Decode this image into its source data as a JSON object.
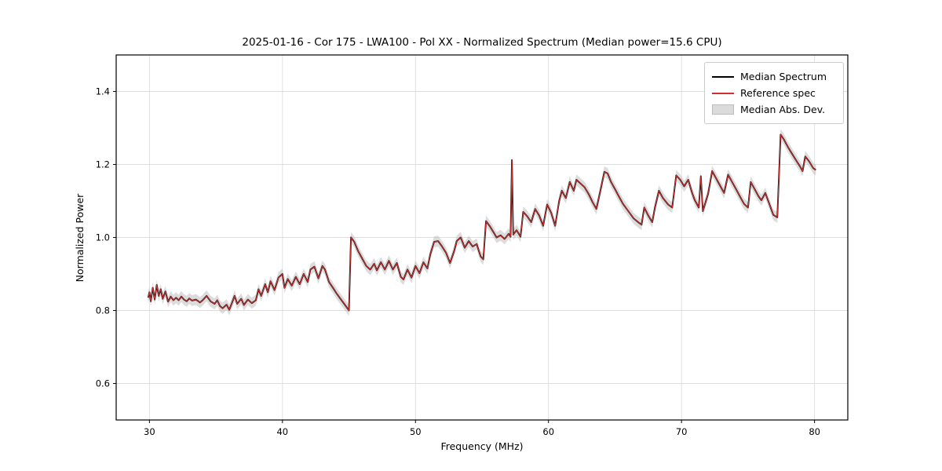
{
  "figure": {
    "title": "2025-01-16 - Cor 175 - LWA100 - Pol XX - Normalized Spectrum (Median power=15.6 CPU)",
    "xlabel": "Frequency (MHz)",
    "ylabel": "Normalized Power"
  },
  "legend": {
    "entries": [
      {
        "label": "Median Spectrum",
        "kind": "line",
        "color": "#000000"
      },
      {
        "label": "Reference spec",
        "kind": "line",
        "color": "#d03030"
      },
      {
        "label": "Median Abs. Dev.",
        "kind": "patch",
        "color": "#c8c8c8"
      }
    ]
  },
  "chart_data": {
    "type": "line",
    "title": "2025-01-16 - Cor 175 - LWA100 - Pol XX - Normalized Spectrum (Median power=15.6 CPU)",
    "xlabel": "Frequency (MHz)",
    "ylabel": "Normalized Power",
    "xlim": [
      27.5,
      82.5
    ],
    "ylim": [
      0.5,
      1.5
    ],
    "xticks": [
      30,
      40,
      50,
      60,
      70,
      80
    ],
    "yticks": [
      0.6,
      0.8,
      1.0,
      1.2,
      1.4
    ],
    "grid": true,
    "legend_position": "upper right",
    "mad": 0.015,
    "colors": {
      "median": "#000000",
      "reference": "#d03030",
      "band": "#bfbfbf",
      "grid": "#dddddd",
      "spine": "#000000"
    },
    "series": [
      {
        "name": "Median Spectrum",
        "points": [
          [
            29.9,
            0.835
          ],
          [
            30.0,
            0.85
          ],
          [
            30.1,
            0.825
          ],
          [
            30.25,
            0.862
          ],
          [
            30.4,
            0.83
          ],
          [
            30.55,
            0.87
          ],
          [
            30.7,
            0.84
          ],
          [
            30.85,
            0.858
          ],
          [
            31.0,
            0.832
          ],
          [
            31.2,
            0.852
          ],
          [
            31.4,
            0.824
          ],
          [
            31.6,
            0.838
          ],
          [
            31.8,
            0.828
          ],
          [
            32.0,
            0.835
          ],
          [
            32.2,
            0.828
          ],
          [
            32.4,
            0.838
          ],
          [
            32.6,
            0.83
          ],
          [
            32.8,
            0.825
          ],
          [
            33.0,
            0.833
          ],
          [
            33.2,
            0.827
          ],
          [
            33.5,
            0.83
          ],
          [
            33.8,
            0.822
          ],
          [
            34.0,
            0.828
          ],
          [
            34.3,
            0.84
          ],
          [
            34.6,
            0.825
          ],
          [
            34.9,
            0.818
          ],
          [
            35.1,
            0.828
          ],
          [
            35.3,
            0.812
          ],
          [
            35.5,
            0.806
          ],
          [
            35.8,
            0.816
          ],
          [
            36.0,
            0.802
          ],
          [
            36.2,
            0.82
          ],
          [
            36.4,
            0.84
          ],
          [
            36.6,
            0.818
          ],
          [
            36.9,
            0.832
          ],
          [
            37.1,
            0.815
          ],
          [
            37.4,
            0.83
          ],
          [
            37.7,
            0.82
          ],
          [
            38.0,
            0.828
          ],
          [
            38.2,
            0.858
          ],
          [
            38.4,
            0.84
          ],
          [
            38.7,
            0.872
          ],
          [
            38.9,
            0.85
          ],
          [
            39.1,
            0.88
          ],
          [
            39.4,
            0.856
          ],
          [
            39.7,
            0.89
          ],
          [
            40.0,
            0.9
          ],
          [
            40.15,
            0.862
          ],
          [
            40.4,
            0.886
          ],
          [
            40.7,
            0.868
          ],
          [
            41.0,
            0.892
          ],
          [
            41.3,
            0.872
          ],
          [
            41.6,
            0.9
          ],
          [
            41.9,
            0.878
          ],
          [
            42.1,
            0.912
          ],
          [
            42.4,
            0.92
          ],
          [
            42.7,
            0.888
          ],
          [
            43.0,
            0.922
          ],
          [
            43.2,
            0.912
          ],
          [
            43.5,
            0.878
          ],
          [
            43.8,
            0.862
          ],
          [
            44.1,
            0.845
          ],
          [
            44.4,
            0.83
          ],
          [
            44.7,
            0.815
          ],
          [
            45.0,
            0.8
          ],
          [
            45.15,
            1.0
          ],
          [
            45.4,
            0.988
          ],
          [
            45.7,
            0.962
          ],
          [
            46.0,
            0.942
          ],
          [
            46.3,
            0.922
          ],
          [
            46.6,
            0.912
          ],
          [
            46.9,
            0.928
          ],
          [
            47.1,
            0.91
          ],
          [
            47.4,
            0.932
          ],
          [
            47.7,
            0.912
          ],
          [
            48.0,
            0.936
          ],
          [
            48.3,
            0.912
          ],
          [
            48.6,
            0.93
          ],
          [
            48.9,
            0.892
          ],
          [
            49.1,
            0.885
          ],
          [
            49.4,
            0.912
          ],
          [
            49.7,
            0.89
          ],
          [
            50.0,
            0.922
          ],
          [
            50.3,
            0.902
          ],
          [
            50.6,
            0.932
          ],
          [
            50.9,
            0.915
          ],
          [
            51.1,
            0.952
          ],
          [
            51.4,
            0.988
          ],
          [
            51.7,
            0.99
          ],
          [
            52.0,
            0.975
          ],
          [
            52.3,
            0.958
          ],
          [
            52.6,
            0.93
          ],
          [
            52.9,
            0.962
          ],
          [
            53.1,
            0.99
          ],
          [
            53.4,
            1.0
          ],
          [
            53.7,
            0.972
          ],
          [
            54.0,
            0.99
          ],
          [
            54.3,
            0.975
          ],
          [
            54.6,
            0.982
          ],
          [
            54.9,
            0.948
          ],
          [
            55.1,
            0.94
          ],
          [
            55.3,
            1.045
          ],
          [
            55.6,
            1.03
          ],
          [
            55.9,
            1.012
          ],
          [
            56.1,
            1.0
          ],
          [
            56.4,
            1.006
          ],
          [
            56.7,
            0.996
          ],
          [
            57.0,
            1.01
          ],
          [
            57.15,
            1.002
          ],
          [
            57.25,
            1.212
          ],
          [
            57.35,
            1.008
          ],
          [
            57.6,
            1.02
          ],
          [
            57.9,
            1.002
          ],
          [
            58.1,
            1.07
          ],
          [
            58.4,
            1.058
          ],
          [
            58.7,
            1.042
          ],
          [
            59.0,
            1.078
          ],
          [
            59.3,
            1.06
          ],
          [
            59.6,
            1.032
          ],
          [
            59.9,
            1.09
          ],
          [
            60.2,
            1.068
          ],
          [
            60.5,
            1.032
          ],
          [
            60.8,
            1.1
          ],
          [
            61.0,
            1.128
          ],
          [
            61.3,
            1.108
          ],
          [
            61.6,
            1.152
          ],
          [
            61.9,
            1.128
          ],
          [
            62.1,
            1.158
          ],
          [
            62.4,
            1.148
          ],
          [
            62.7,
            1.138
          ],
          [
            63.0,
            1.12
          ],
          [
            63.3,
            1.098
          ],
          [
            63.6,
            1.078
          ],
          [
            63.9,
            1.128
          ],
          [
            64.2,
            1.18
          ],
          [
            64.45,
            1.175
          ],
          [
            64.7,
            1.152
          ],
          [
            65.0,
            1.132
          ],
          [
            65.3,
            1.112
          ],
          [
            65.6,
            1.092
          ],
          [
            66.0,
            1.072
          ],
          [
            66.4,
            1.052
          ],
          [
            66.8,
            1.04
          ],
          [
            67.0,
            1.035
          ],
          [
            67.2,
            1.082
          ],
          [
            67.5,
            1.06
          ],
          [
            67.8,
            1.042
          ],
          [
            68.0,
            1.082
          ],
          [
            68.3,
            1.128
          ],
          [
            68.6,
            1.108
          ],
          [
            69.0,
            1.09
          ],
          [
            69.3,
            1.082
          ],
          [
            69.6,
            1.17
          ],
          [
            69.9,
            1.158
          ],
          [
            70.2,
            1.14
          ],
          [
            70.5,
            1.158
          ],
          [
            70.8,
            1.122
          ],
          [
            71.0,
            1.102
          ],
          [
            71.3,
            1.082
          ],
          [
            71.45,
            1.168
          ],
          [
            71.6,
            1.072
          ],
          [
            72.0,
            1.12
          ],
          [
            72.3,
            1.182
          ],
          [
            72.6,
            1.162
          ],
          [
            72.9,
            1.142
          ],
          [
            73.2,
            1.122
          ],
          [
            73.5,
            1.172
          ],
          [
            73.8,
            1.152
          ],
          [
            74.1,
            1.132
          ],
          [
            74.4,
            1.112
          ],
          [
            74.7,
            1.092
          ],
          [
            75.0,
            1.082
          ],
          [
            75.2,
            1.152
          ],
          [
            75.5,
            1.132
          ],
          [
            75.8,
            1.112
          ],
          [
            76.0,
            1.102
          ],
          [
            76.3,
            1.122
          ],
          [
            76.6,
            1.092
          ],
          [
            76.9,
            1.062
          ],
          [
            77.2,
            1.055
          ],
          [
            77.45,
            1.282
          ],
          [
            77.7,
            1.268
          ],
          [
            78.0,
            1.248
          ],
          [
            78.3,
            1.23
          ],
          [
            78.6,
            1.212
          ],
          [
            78.9,
            1.195
          ],
          [
            79.1,
            1.182
          ],
          [
            79.3,
            1.222
          ],
          [
            79.6,
            1.208
          ],
          [
            79.9,
            1.19
          ],
          [
            80.1,
            1.185
          ]
        ]
      },
      {
        "name": "Reference spec",
        "same_as": "Median Spectrum"
      }
    ]
  }
}
